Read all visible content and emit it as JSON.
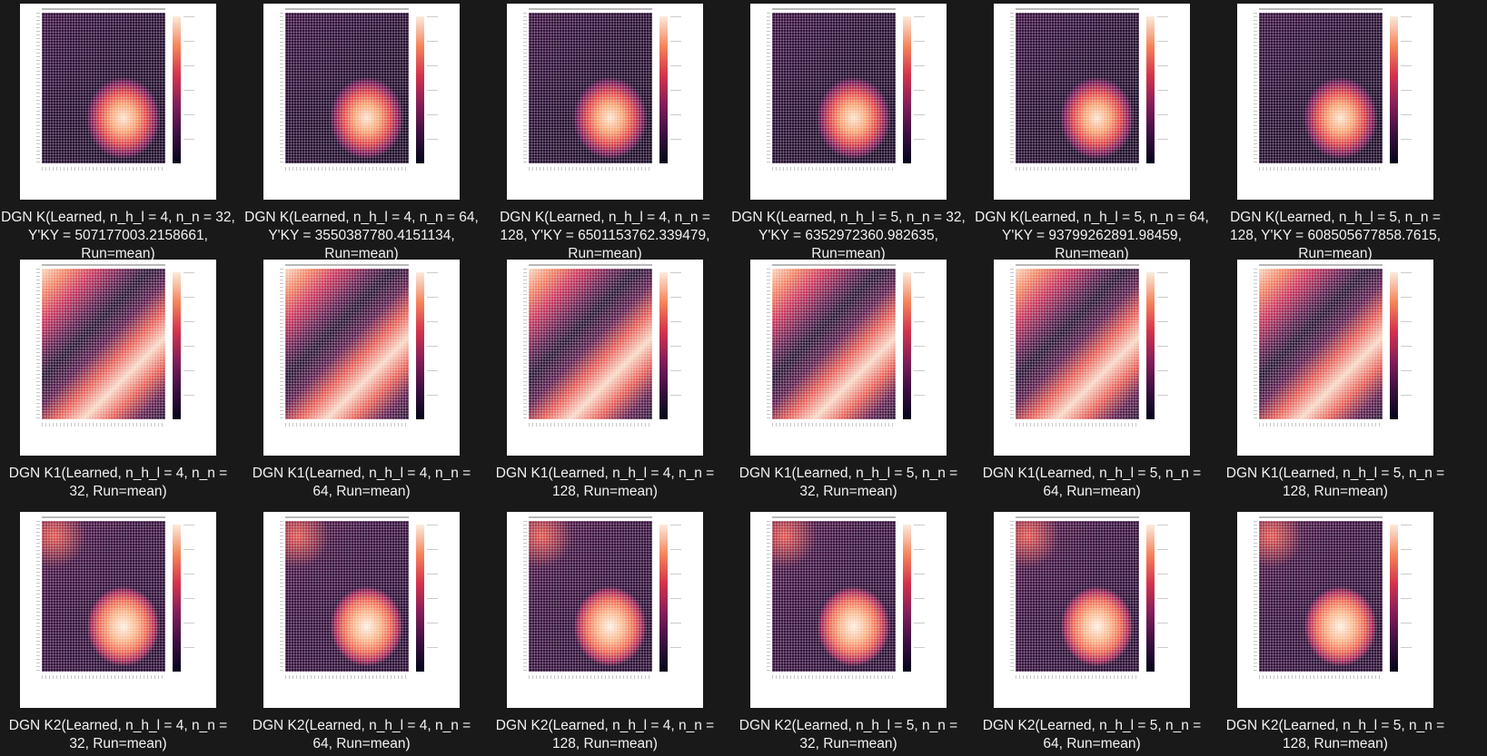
{
  "tiles": [
    {
      "caption": "DGN K(Learned, n_h_l = 4, n_n = 32, Y'KY = 507177003.2158661, Run=mean)",
      "pattern": "K"
    },
    {
      "caption": "DGN K(Learned, n_h_l = 4, n_n = 64, Y'KY = 3550387780.4151134, Run=mean)",
      "pattern": "K"
    },
    {
      "caption": "DGN K(Learned, n_h_l = 4, n_n = 128, Y'KY = 6501153762.339479, Run=mean)",
      "pattern": "K"
    },
    {
      "caption": "DGN K(Learned, n_h_l = 5, n_n = 32, Y'KY = 6352972360.982635, Run=mean)",
      "pattern": "K"
    },
    {
      "caption": "DGN K(Learned, n_h_l = 5, n_n = 64, Y'KY = 93799262891.98459, Run=mean)",
      "pattern": "K"
    },
    {
      "caption": "DGN K(Learned, n_h_l = 5, n_n = 128, Y'KY = 608505677858.7615, Run=mean)",
      "pattern": "K"
    },
    {
      "caption": "DGN K1(Learned, n_h_l = 4, n_n = 32, Run=mean)",
      "pattern": "K1"
    },
    {
      "caption": "DGN K1(Learned, n_h_l = 4, n_n = 64, Run=mean)",
      "pattern": "K1"
    },
    {
      "caption": "DGN K1(Learned, n_h_l = 4, n_n = 128, Run=mean)",
      "pattern": "K1"
    },
    {
      "caption": "DGN K1(Learned, n_h_l = 5, n_n = 32, Run=mean)",
      "pattern": "K1"
    },
    {
      "caption": "DGN K1(Learned, n_h_l = 5, n_n = 64, Run=mean)",
      "pattern": "K1"
    },
    {
      "caption": "DGN K1(Learned, n_h_l = 5, n_n = 128, Run=mean)",
      "pattern": "K1"
    },
    {
      "caption": "DGN K2(Learned, n_h_l = 4, n_n = 32, Run=mean)",
      "pattern": "K2"
    },
    {
      "caption": "DGN K2(Learned, n_h_l = 4, n_n = 64, Run=mean)",
      "pattern": "K2"
    },
    {
      "caption": "DGN K2(Learned, n_h_l = 4, n_n = 128, Run=mean)",
      "pattern": "K2"
    },
    {
      "caption": "DGN K2(Learned, n_h_l = 5, n_n = 32, Run=mean)",
      "pattern": "K2"
    },
    {
      "caption": "DGN K2(Learned, n_h_l = 5, n_n = 64, Run=mean)",
      "pattern": "K2"
    },
    {
      "caption": "DGN K2(Learned, n_h_l = 5, n_n = 128, Run=mean)",
      "pattern": "K2"
    }
  ],
  "colors": {
    "background": "#191919",
    "caption_text": "#f2f2f2",
    "thumb_background": "#ffffff"
  }
}
